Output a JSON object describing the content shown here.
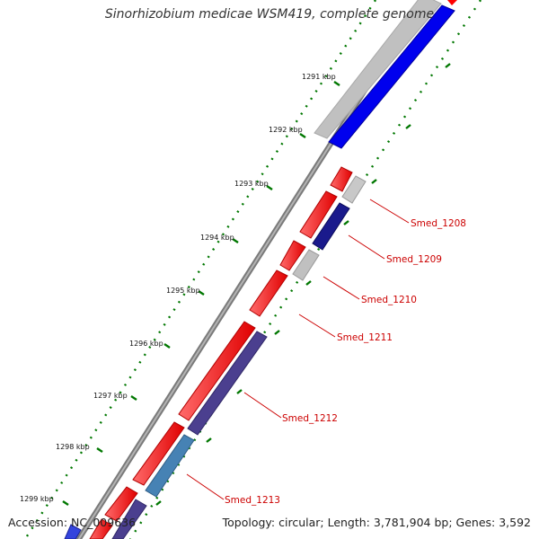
{
  "title": "Sinorhizobium medicae WSM419, complete genome",
  "accession": "Accession: NC_009636",
  "summary": "Topology: circular; Length: 3,781,904 bp; Genes: 3,592",
  "scale_labels": [
    "1291 kbp",
    "1292 kbp",
    "1293 kbp",
    "1294 kbp",
    "1295 kbp",
    "1296 kbp",
    "1297 kbp",
    "1298 kbp",
    "1299 kbp"
  ],
  "gene_labels": [
    "Smed_1208",
    "Smed_1209",
    "Smed_1210",
    "Smed_1211",
    "Smed_1212",
    "Smed_1213"
  ],
  "colors": {
    "forward_cds": "#ff0000",
    "reverse_grey": "#c0c0c0",
    "reverse_blue": "#0000ff",
    "reverse_navy": "#1a1a8c",
    "reverse_purple": "#4b3f8f",
    "reverse_steel": "#4682b4",
    "label_red": "#cc0000",
    "tick_green": "#007700",
    "backbone": "#808080"
  }
}
